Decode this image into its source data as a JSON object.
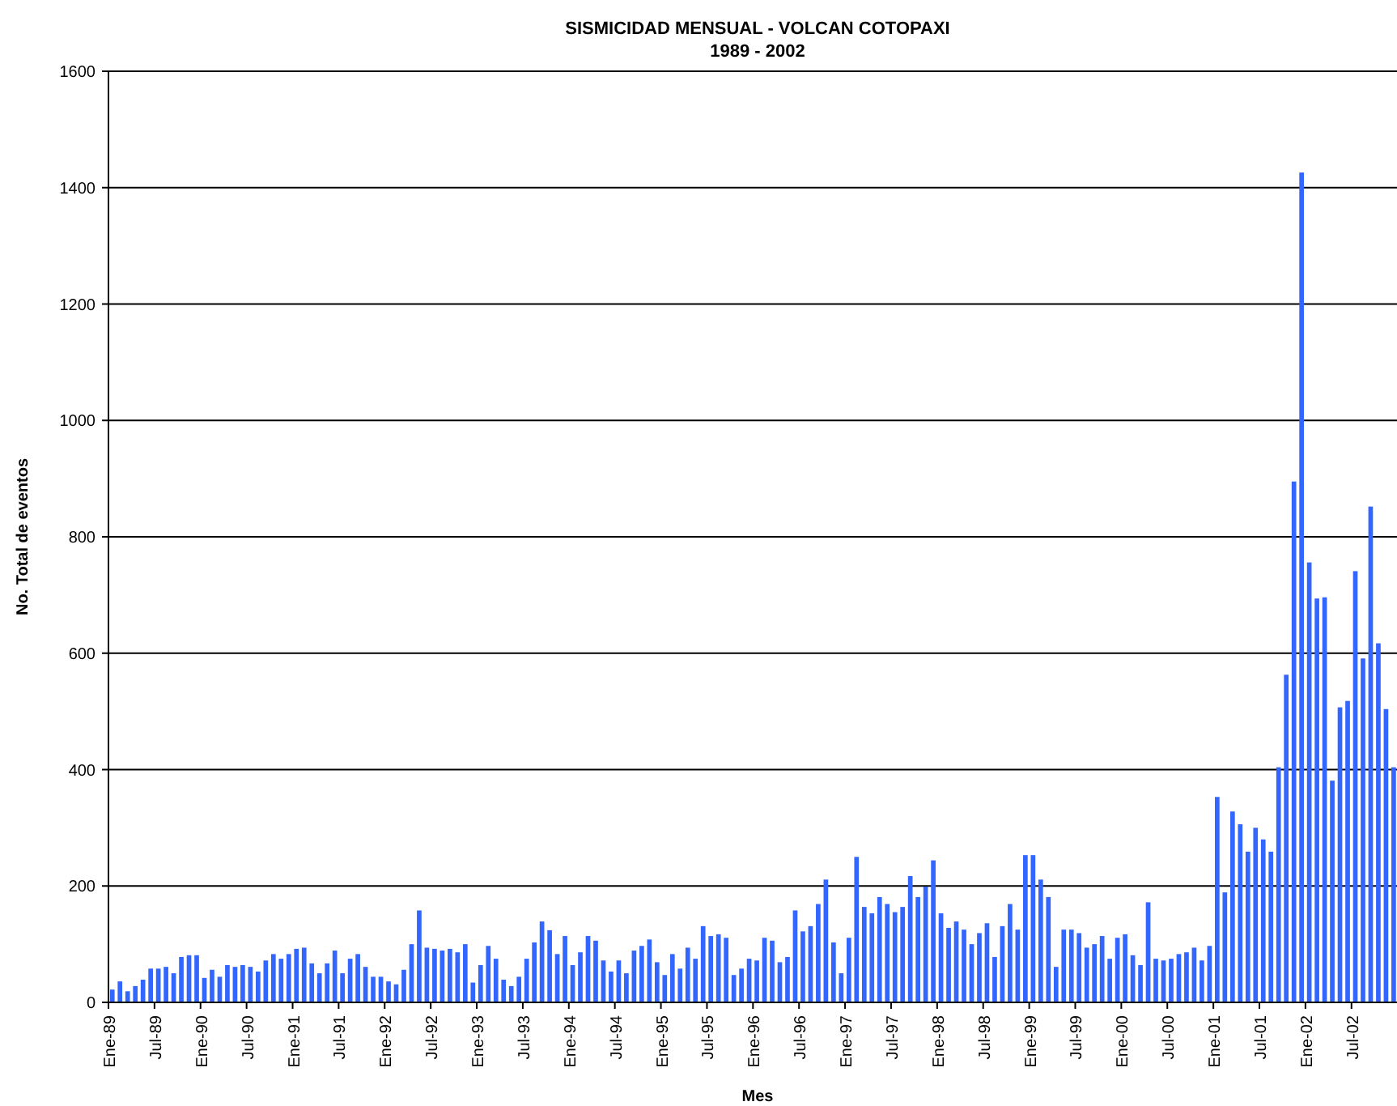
{
  "chart_data": {
    "type": "bar",
    "title": "SISMICIDAD MENSUAL - VOLCAN COTOPAXI",
    "subtitle": "1989 - 2002",
    "xlabel": "Mes",
    "ylabel": "No. Total de eventos",
    "categories": [
      "Ene-89",
      null,
      null,
      null,
      null,
      null,
      "Jul-89",
      null,
      null,
      null,
      null,
      null,
      "Ene-90",
      null,
      null,
      null,
      null,
      null,
      "Jul-90",
      null,
      null,
      null,
      null,
      null,
      "Ene-91",
      null,
      null,
      null,
      null,
      null,
      "Jul-91",
      null,
      null,
      null,
      null,
      null,
      "Ene-92",
      null,
      null,
      null,
      null,
      null,
      "Jul-92",
      null,
      null,
      null,
      null,
      null,
      "Ene-93",
      null,
      null,
      null,
      null,
      null,
      "Jul-93",
      null,
      null,
      null,
      null,
      null,
      "Ene-94",
      null,
      null,
      null,
      null,
      null,
      "Jul-94",
      null,
      null,
      null,
      null,
      null,
      "Ene-95",
      null,
      null,
      null,
      null,
      null,
      "Jul-95",
      null,
      null,
      null,
      null,
      null,
      "Ene-96",
      null,
      null,
      null,
      null,
      null,
      "Jul-96",
      null,
      null,
      null,
      null,
      null,
      "Ene-97",
      null,
      null,
      null,
      null,
      null,
      "Jul-97",
      null,
      null,
      null,
      null,
      null,
      "Ene-98",
      null,
      null,
      null,
      null,
      null,
      "Jul-98",
      null,
      null,
      null,
      null,
      null,
      "Ene-99",
      null,
      null,
      null,
      null,
      null,
      "Jul-99",
      null,
      null,
      null,
      null,
      null,
      "Ene-00",
      null,
      null,
      null,
      null,
      null,
      "Jul-00",
      null,
      null,
      null,
      null,
      null,
      "Ene-01",
      null,
      null,
      null,
      null,
      null,
      "Jul-01",
      null,
      null,
      null,
      null,
      null,
      "Ene-02",
      null,
      null,
      null,
      null,
      null,
      "Jul-02",
      null,
      null,
      null,
      null,
      null
    ],
    "values": [
      22,
      36,
      19,
      28,
      39,
      58,
      58,
      61,
      50,
      78,
      81,
      81,
      42,
      56,
      44,
      64,
      61,
      64,
      61,
      53,
      72,
      83,
      75,
      83,
      92,
      94,
      67,
      50,
      67,
      89,
      50,
      75,
      83,
      61,
      44,
      44,
      36,
      31,
      56,
      100,
      158,
      94,
      92,
      89,
      92,
      86,
      100,
      34,
      64,
      97,
      75,
      39,
      28,
      44,
      75,
      103,
      139,
      124,
      83,
      114,
      64,
      86,
      114,
      106,
      72,
      53,
      72,
      50,
      89,
      97,
      108,
      69,
      47,
      83,
      58,
      94,
      75,
      131,
      114,
      117,
      111,
      47,
      58,
      75,
      72,
      111,
      106,
      69,
      78,
      158,
      122,
      131,
      169,
      211,
      103,
      50,
      111,
      250,
      164,
      153,
      181,
      169,
      155,
      164,
      217,
      181,
      199,
      244,
      153,
      128,
      139,
      125,
      100,
      119,
      136,
      78,
      131,
      169,
      125,
      253,
      253,
      211,
      181,
      61,
      125,
      125,
      119,
      94,
      100,
      114,
      75,
      111,
      117,
      81,
      64,
      172,
      75,
      72,
      75,
      83,
      86,
      94,
      72,
      97,
      353,
      189,
      328,
      306,
      259,
      300,
      280,
      259,
      404,
      563,
      895,
      1426,
      756,
      694,
      696,
      381,
      507,
      518,
      741,
      591,
      852,
      617,
      504,
      404
    ],
    "color": "#3366ff",
    "ylim": [
      0,
      1600
    ],
    "yticks": [
      0,
      200,
      400,
      600,
      800,
      1000,
      1200,
      1400,
      1600
    ],
    "grid": "y"
  }
}
